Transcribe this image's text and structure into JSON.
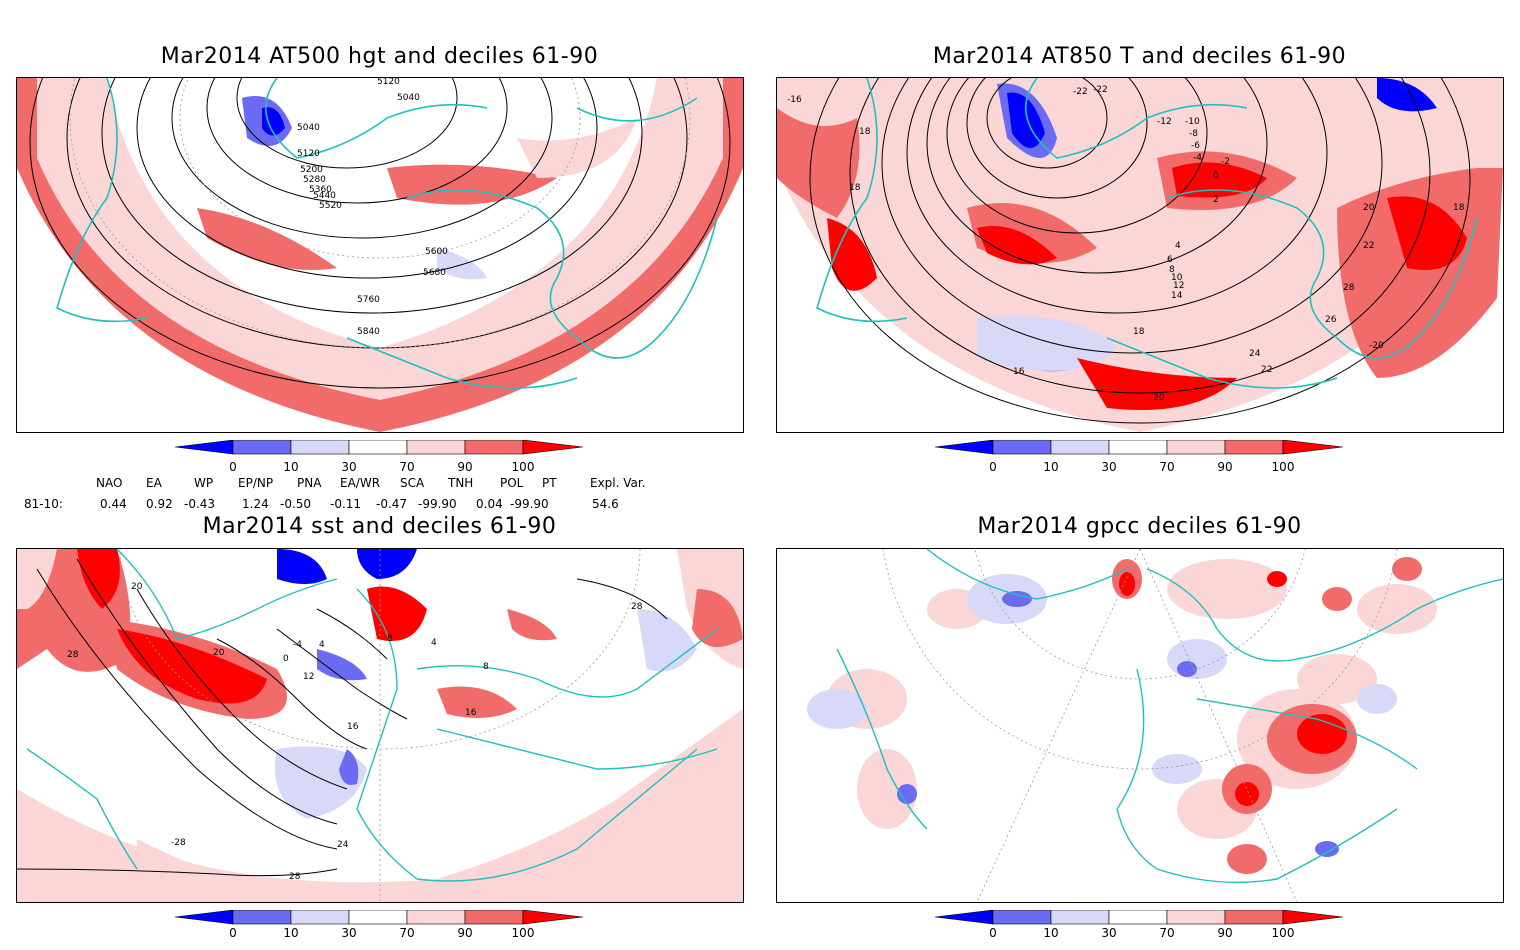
{
  "panels": [
    {
      "id": "p1",
      "title": "Mar2014 AT500 hgt and deciles 61-90",
      "contour_labels": [
        "5120",
        "5040",
        "5040",
        "5120",
        "5200",
        "5280",
        "5360",
        "5440",
        "5520",
        "5600",
        "5680",
        "5760",
        "5840"
      ]
    },
    {
      "id": "p2",
      "title": "Mar2014 AT850 T and deciles 61-90",
      "contour_labels": [
        "-16",
        "18",
        "18",
        "-22",
        "-22",
        "-12",
        "-10",
        "-8",
        "-6",
        "-4",
        "-2",
        "0",
        "2",
        "4",
        "6",
        "8",
        "10",
        "12",
        "14",
        "16",
        "18",
        "20",
        "20",
        "22",
        "22",
        "24",
        "26",
        "28",
        "18",
        "-20"
      ]
    },
    {
      "id": "p3",
      "title": "Mar2014 sst and deciles 61-90",
      "contour_labels": [
        "20",
        "28",
        "0",
        "-4",
        "4",
        "8",
        "12",
        "16",
        "20",
        "24",
        "28",
        "28",
        "-28",
        "4",
        "8",
        "16"
      ]
    },
    {
      "id": "p4",
      "title": "Mar2014 gpcc deciles 61-90",
      "contour_labels": []
    }
  ],
  "colorbar": {
    "labels": [
      "0",
      "10",
      "30",
      "70",
      "90",
      "100"
    ],
    "colors": {
      "dark_blue": "#0000ff",
      "mid_blue": "#6b6bf2",
      "light_blue": "#d8d8f8",
      "white": "#ffffff",
      "light_red": "#fbd6d6",
      "mid_red": "#f26b6b",
      "dark_red": "#ff0000"
    }
  },
  "teleconnections": {
    "headers": [
      "NAO",
      "EA",
      "WP",
      "EP/NP",
      "PNA",
      "EA/WR",
      "SCA",
      "TNH",
      "POL",
      "PT",
      "Expl. Var."
    ],
    "row_label": "81-10:",
    "values": [
      "0.44",
      "0.92",
      "-0.43",
      "1.24",
      "-0.50",
      "-0.11",
      "-0.47",
      "-99.90",
      "0.04",
      "-99.90",
      "54.6"
    ]
  },
  "colors": {
    "coast": "#20c0c0",
    "contour": "#000000",
    "grid": "#999999"
  }
}
